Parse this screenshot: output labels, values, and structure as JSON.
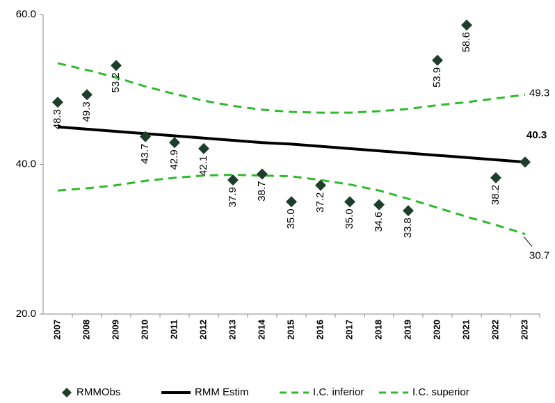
{
  "chart_data": {
    "type": "line",
    "categories": [
      "2007",
      "2008",
      "2009",
      "2010",
      "2011",
      "2012",
      "2013",
      "2014",
      "2015",
      "2016",
      "2017",
      "2018",
      "2019",
      "2020",
      "2021",
      "2022",
      "2023"
    ],
    "ylim": [
      20,
      60
    ],
    "yticks": [
      {
        "value": 20,
        "label": "20.0"
      },
      {
        "value": 40,
        "label": "40.0"
      },
      {
        "value": 60,
        "label": "60.0"
      }
    ],
    "series": [
      {
        "name": "RMMObs",
        "color": "#1f3d2c",
        "style": "diamond",
        "values": [
          48.3,
          49.3,
          53.2,
          43.7,
          42.9,
          42.1,
          37.9,
          38.7,
          35.0,
          37.2,
          35.0,
          34.6,
          33.8,
          53.9,
          58.6,
          38.2,
          40.3
        ],
        "value_labels": [
          "48.3",
          "49.3",
          "53.2",
          "43.7",
          "42.9",
          "42.1",
          "37.9",
          "38.7",
          "35.0",
          "37.2",
          "35.0",
          "34.6",
          "33.8",
          "53.9",
          "58.6",
          "38.2",
          null
        ]
      },
      {
        "name": "RMM Estim",
        "color": "#000000",
        "style": "solid",
        "label_color": "#8b1a3a",
        "values": [
          45.0,
          44.7,
          44.4,
          44.1,
          43.8,
          43.5,
          43.2,
          42.9,
          42.7,
          42.4,
          42.1,
          41.8,
          41.5,
          41.2,
          40.9,
          40.6,
          40.3
        ],
        "value_labels": [
          null,
          null,
          null,
          null,
          null,
          null,
          null,
          null,
          null,
          null,
          null,
          null,
          null,
          null,
          null,
          null,
          "40.3"
        ]
      },
      {
        "name": "I.C. inferior",
        "color": "#2dbb2d",
        "style": "dashed",
        "values": [
          36.5,
          36.8,
          37.2,
          37.8,
          38.2,
          38.5,
          38.6,
          38.5,
          38.4,
          37.9,
          37.3,
          36.5,
          35.4,
          34.2,
          33.0,
          31.9,
          30.7
        ],
        "value_labels": [
          null,
          null,
          null,
          null,
          null,
          null,
          null,
          null,
          null,
          null,
          null,
          null,
          null,
          null,
          null,
          null,
          "30.7"
        ]
      },
      {
        "name": "I.C. superior",
        "color": "#2dbb2d",
        "style": "dashed",
        "values": [
          53.5,
          52.6,
          51.6,
          50.4,
          49.4,
          48.5,
          47.8,
          47.3,
          47.0,
          46.9,
          46.9,
          47.1,
          47.4,
          47.9,
          48.3,
          48.8,
          49.3
        ],
        "value_labels": [
          null,
          null,
          null,
          null,
          null,
          null,
          null,
          null,
          null,
          null,
          null,
          null,
          null,
          null,
          null,
          null,
          "49.3"
        ]
      }
    ]
  }
}
